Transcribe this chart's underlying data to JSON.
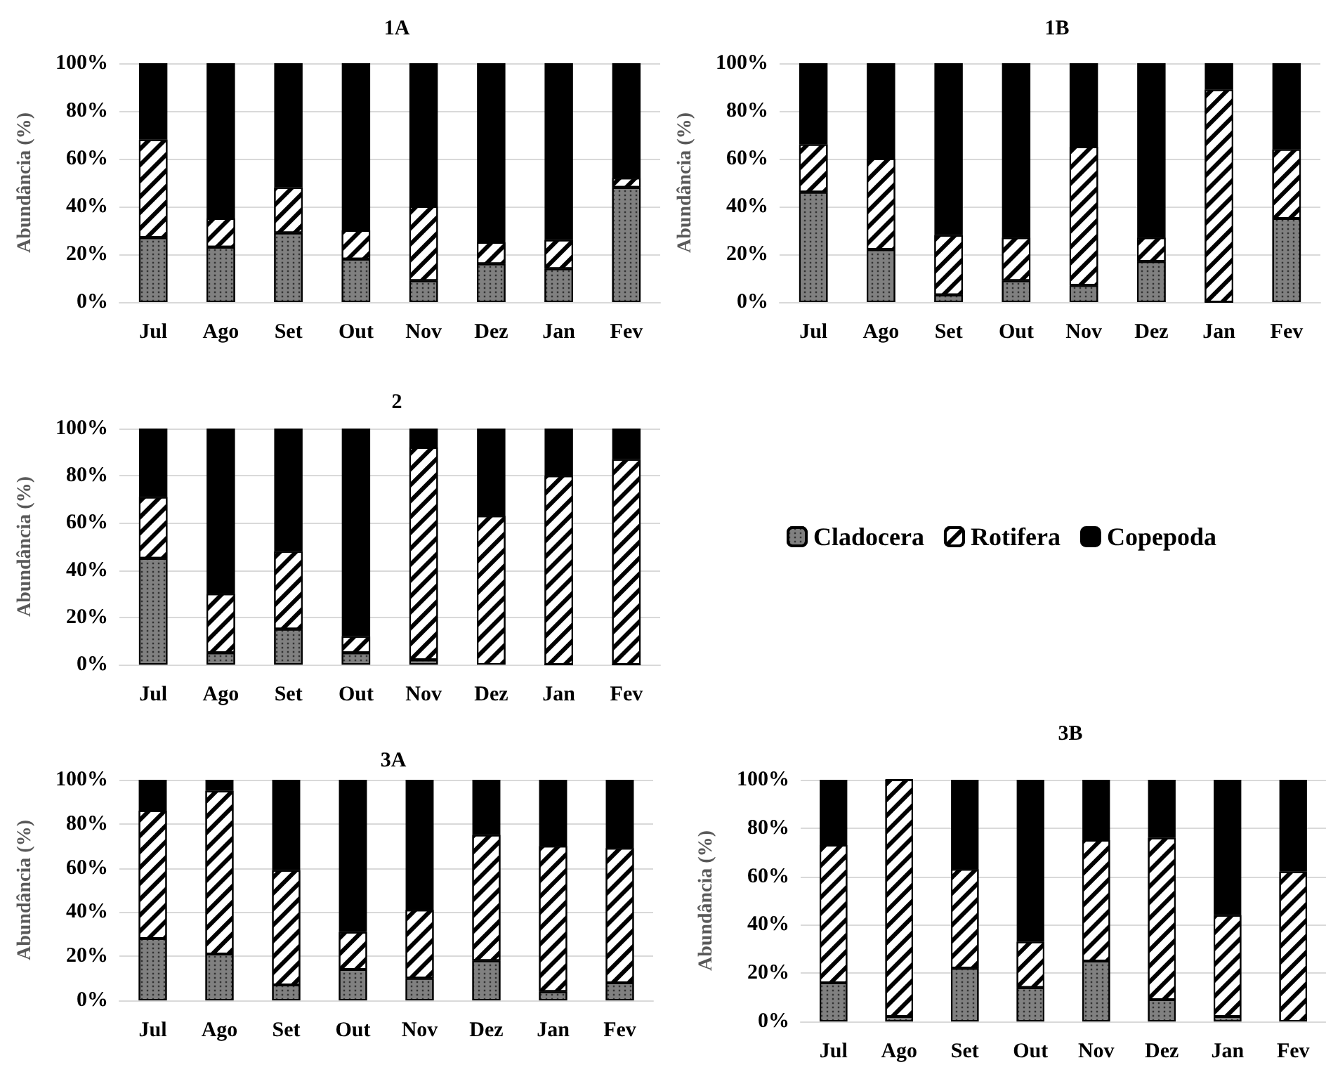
{
  "chart_data": [
    {
      "type": "bar",
      "title": "1A",
      "ylabel": "Abundância (%)",
      "stacked": true,
      "grid": "y",
      "legend": false,
      "categories": [
        "Jul",
        "Ago",
        "Set",
        "Out",
        "Nov",
        "Dez",
        "Jan",
        "Fev"
      ],
      "ylim": [
        0,
        100
      ],
      "yticks": [
        {
          "value": 0,
          "label": "0%"
        },
        {
          "value": 20,
          "label": "20%"
        },
        {
          "value": 40,
          "label": "40%"
        },
        {
          "value": 60,
          "label": "60%"
        },
        {
          "value": 80,
          "label": "80%"
        },
        {
          "value": 100,
          "label": "100%"
        }
      ],
      "series": [
        {
          "color": "#808080",
          "values": [
            27,
            23,
            29,
            18,
            9,
            16,
            14,
            48
          ]
        },
        {
          "color": "#ffffff",
          "values": [
            41,
            12,
            19,
            12,
            31,
            9,
            12,
            4
          ]
        },
        {
          "color": "#000000",
          "values": [
            32,
            65,
            52,
            70,
            60,
            75,
            74,
            48
          ]
        }
      ]
    },
    {
      "type": "bar",
      "title": "1B",
      "ylabel": "Abundância (%)",
      "stacked": true,
      "grid": "y",
      "legend": false,
      "categories": [
        "Jul",
        "Ago",
        "Set",
        "Out",
        "Nov",
        "Dez",
        "Jan",
        "Fev"
      ],
      "ylim": [
        0,
        100
      ],
      "yticks": [
        {
          "value": 0,
          "label": "0%"
        },
        {
          "value": 20,
          "label": "20%"
        },
        {
          "value": 40,
          "label": "40%"
        },
        {
          "value": 60,
          "label": "60%"
        },
        {
          "value": 80,
          "label": "80%"
        },
        {
          "value": 100,
          "label": "100%"
        }
      ],
      "series": [
        {
          "color": "#808080",
          "values": [
            46,
            22,
            3,
            9,
            7,
            17,
            0,
            35
          ]
        },
        {
          "color": "#ffffff",
          "values": [
            20,
            38,
            25,
            18,
            58,
            10,
            89,
            29
          ]
        },
        {
          "color": "#000000",
          "values": [
            34,
            40,
            72,
            73,
            35,
            73,
            11,
            36
          ]
        }
      ]
    },
    {
      "type": "bar",
      "title": "2",
      "ylabel": "Abundância (%)",
      "stacked": true,
      "grid": "y",
      "legend": "right",
      "categories": [
        "Jul",
        "Ago",
        "Set",
        "Out",
        "Nov",
        "Dez",
        "Jan",
        "Fev"
      ],
      "ylim": [
        0,
        100
      ],
      "yticks": [
        {
          "value": 0,
          "label": "0%"
        },
        {
          "value": 20,
          "label": "20%"
        },
        {
          "value": 40,
          "label": "40%"
        },
        {
          "value": 60,
          "label": "60%"
        },
        {
          "value": 80,
          "label": "80%"
        },
        {
          "value": 100,
          "label": "100%"
        }
      ],
      "series": [
        {
          "name": "Cladocera",
          "color": "#808080",
          "values": [
            45,
            5,
            15,
            5,
            2,
            null,
            0,
            0
          ]
        },
        {
          "name": "Rotifera",
          "color": "#ffffff",
          "values": [
            26,
            25,
            33,
            7,
            90,
            63,
            80,
            87
          ]
        },
        {
          "name": "Copepoda",
          "color": "#000000",
          "values": [
            29,
            70,
            52,
            88,
            8,
            37,
            20,
            13
          ]
        }
      ]
    },
    {
      "type": "bar",
      "title": "3A",
      "ylabel": "Abundância (%)",
      "stacked": true,
      "grid": "y",
      "legend": false,
      "categories": [
        "Jul",
        "Ago",
        "Set",
        "Out",
        "Nov",
        "Dez",
        "Jan",
        "Fev"
      ],
      "ylim": [
        0,
        100
      ],
      "yticks": [
        {
          "value": 0,
          "label": "0%"
        },
        {
          "value": 20,
          "label": "20%"
        },
        {
          "value": 40,
          "label": "40%"
        },
        {
          "value": 60,
          "label": "60%"
        },
        {
          "value": 80,
          "label": "80%"
        },
        {
          "value": 100,
          "label": "100%"
        }
      ],
      "series": [
        {
          "color": "#808080",
          "values": [
            28,
            21,
            7,
            14,
            10,
            18,
            4,
            8
          ]
        },
        {
          "color": "#ffffff",
          "values": [
            58,
            74,
            52,
            17,
            31,
            57,
            66,
            61
          ]
        },
        {
          "color": "#000000",
          "values": [
            14,
            5,
            41,
            69,
            59,
            25,
            30,
            31
          ]
        }
      ]
    },
    {
      "type": "bar",
      "title": "3B",
      "ylabel": "Abundância (%)",
      "stacked": true,
      "grid": "y",
      "legend": false,
      "categories": [
        "Jul",
        "Ago",
        "Set",
        "Out",
        "Nov",
        "Dez",
        "Jan",
        "Fev"
      ],
      "ylim": [
        0,
        100
      ],
      "yticks": [
        {
          "value": 0,
          "label": "0%"
        },
        {
          "value": 20,
          "label": "20%"
        },
        {
          "value": 40,
          "label": "40%"
        },
        {
          "value": 60,
          "label": "60%"
        },
        {
          "value": 80,
          "label": "80%"
        },
        {
          "value": 100,
          "label": "100%"
        }
      ],
      "series": [
        {
          "color": "#808080",
          "values": [
            16,
            2,
            22,
            14,
            25,
            9,
            2,
            null
          ]
        },
        {
          "color": "#ffffff",
          "values": [
            57,
            98,
            41,
            19,
            50,
            67,
            42,
            62
          ]
        },
        {
          "color": "#000000",
          "values": [
            27,
            0,
            37,
            67,
            25,
            24,
            56,
            38
          ]
        }
      ]
    }
  ]
}
